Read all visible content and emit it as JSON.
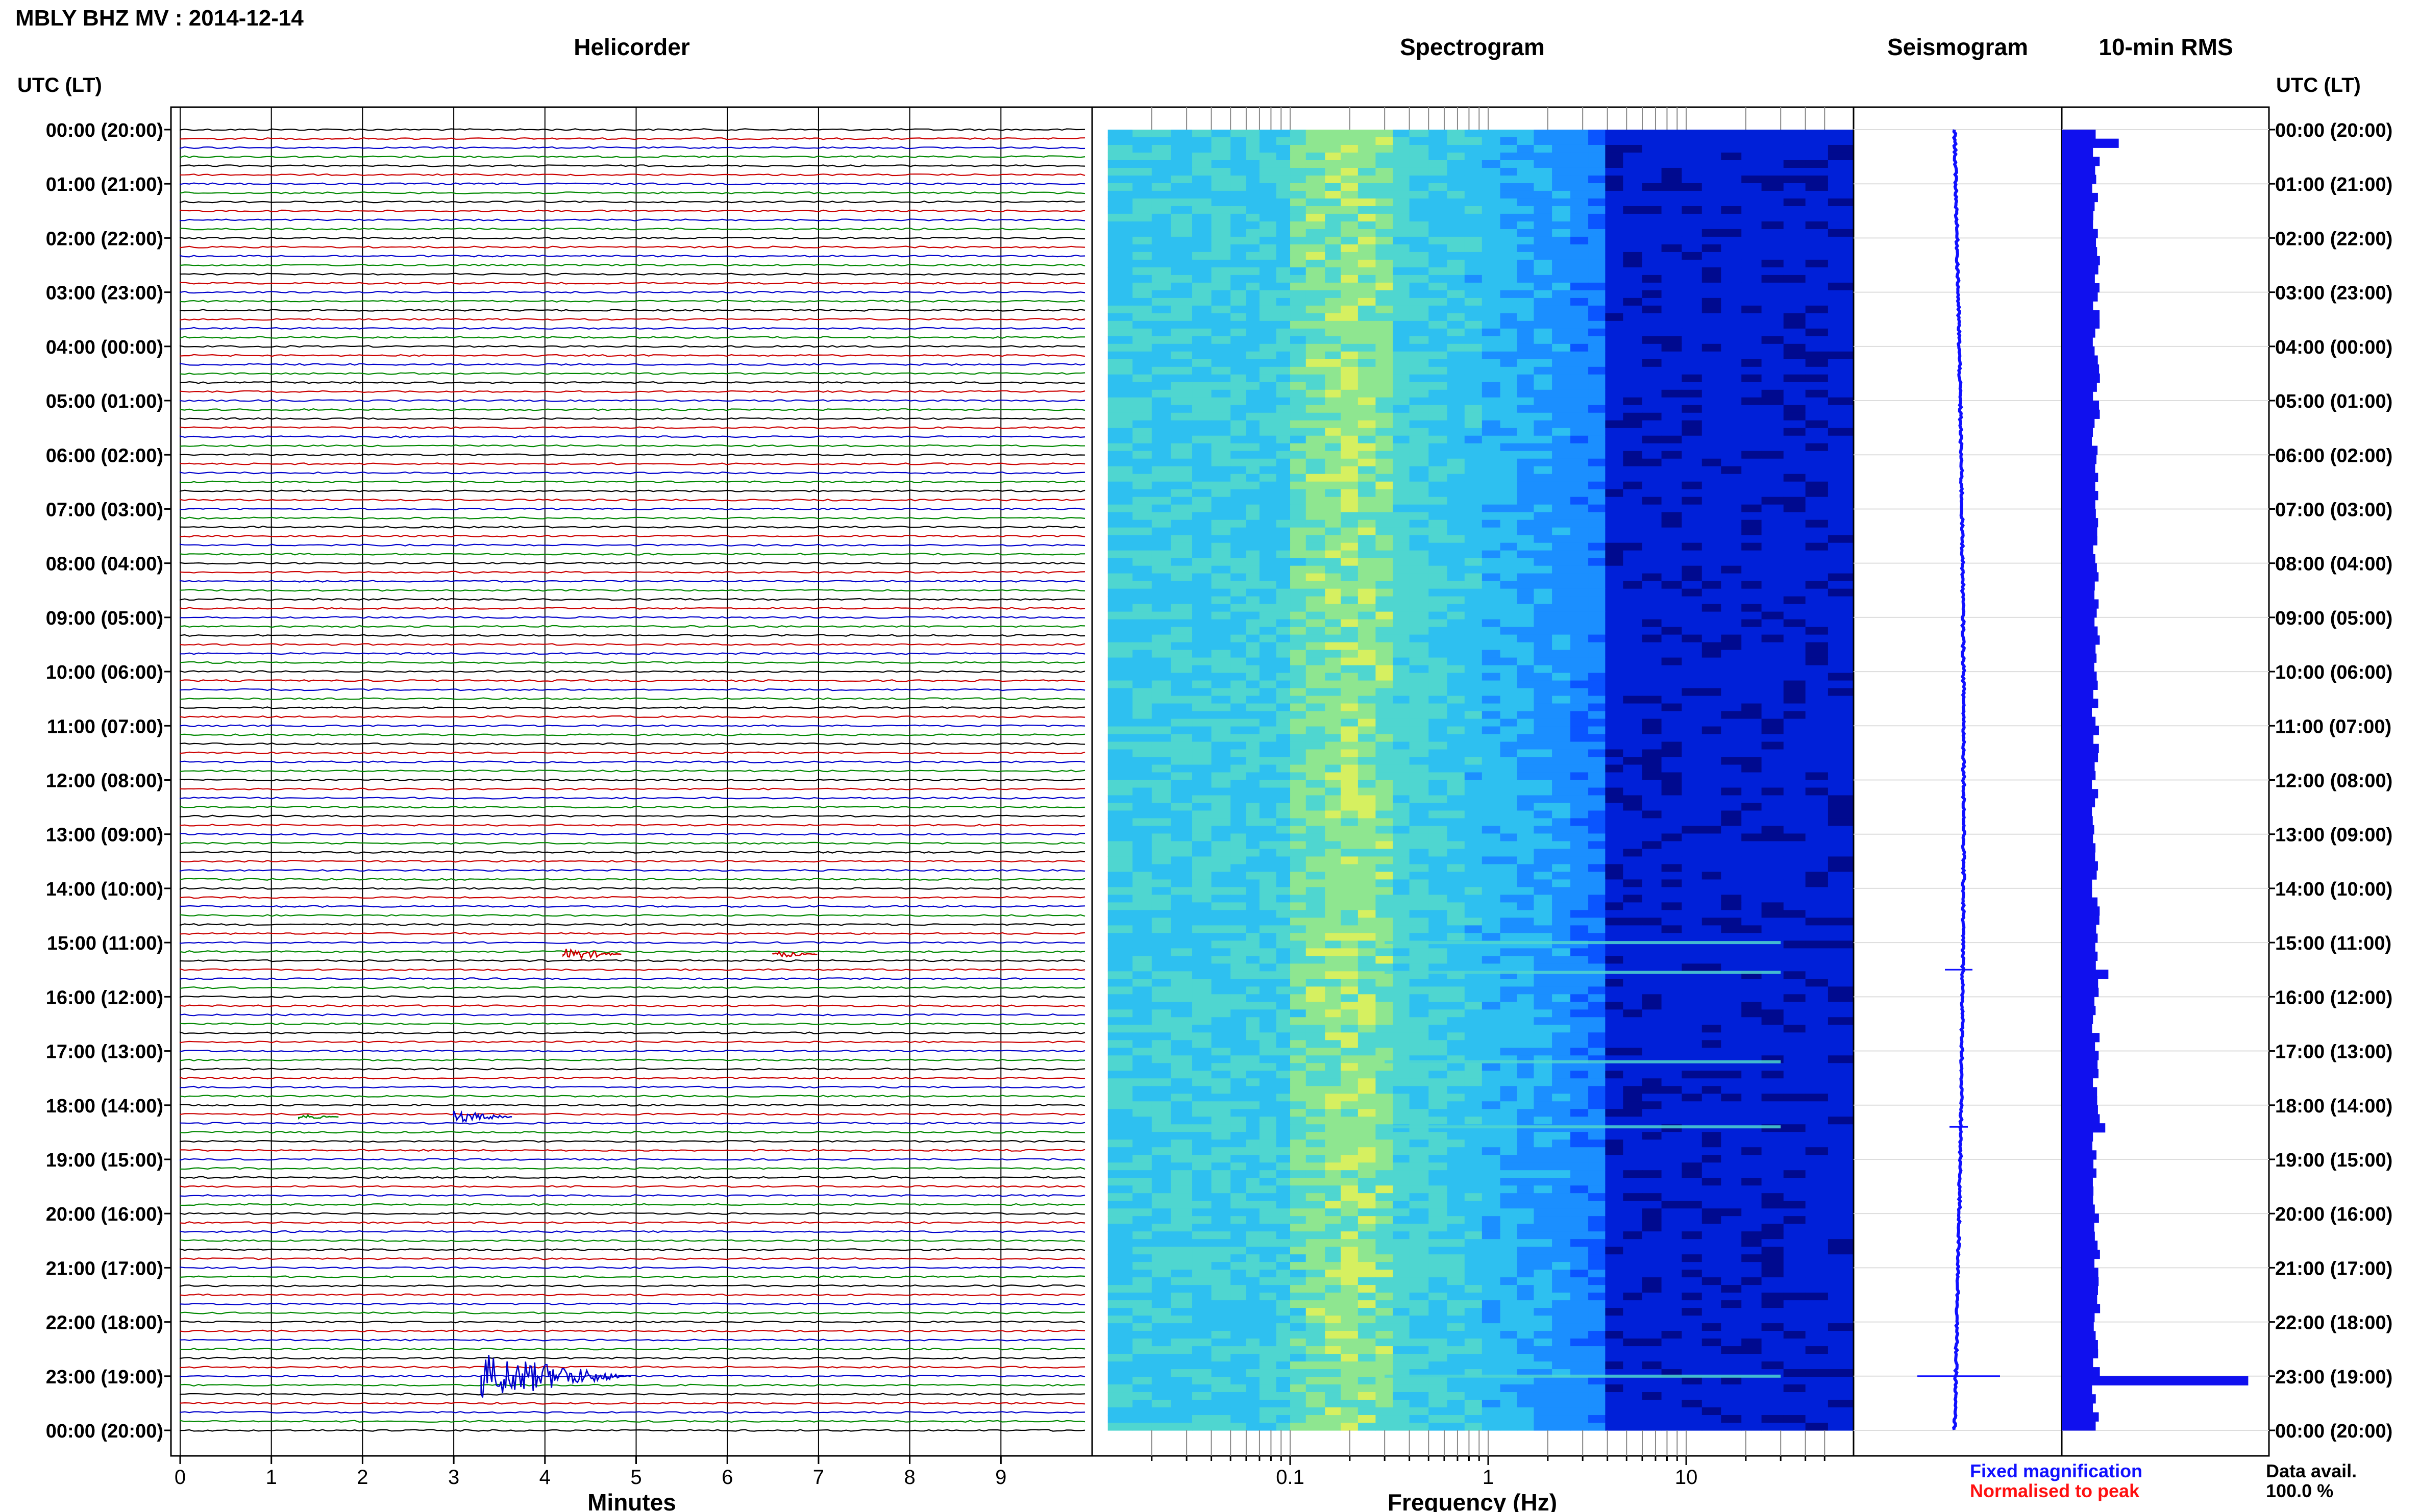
{
  "header": {
    "title": "MBLY BHZ MV : 2014-12-14",
    "left_axis_label": "UTC (LT)",
    "right_axis_label": "UTC (LT)"
  },
  "panels": {
    "helicorder": {
      "title": "Helicorder",
      "xlabel": "Minutes"
    },
    "spectrogram": {
      "title": "Spectrogram",
      "xlabel": "Frequency (Hz)"
    },
    "seismogram": {
      "title": "Seismogram"
    },
    "rms": {
      "title": "10-min RMS"
    }
  },
  "legend": {
    "fixed_label": "Fixed magnification",
    "fixed_color": "#1010ff",
    "normalised_label": "Normalised to peak",
    "normalised_color": "#ff1010"
  },
  "data_availability": {
    "label": "Data avail.",
    "value": "100.0 %"
  },
  "time_labels": [
    "00:00 (20:00)",
    "01:00 (21:00)",
    "02:00 (22:00)",
    "03:00 (23:00)",
    "04:00 (00:00)",
    "05:00 (01:00)",
    "06:00 (02:00)",
    "07:00 (03:00)",
    "08:00 (04:00)",
    "09:00 (05:00)",
    "10:00 (06:00)",
    "11:00 (07:00)",
    "12:00 (08:00)",
    "13:00 (09:00)",
    "14:00 (10:00)",
    "15:00 (11:00)",
    "16:00 (12:00)",
    "17:00 (13:00)",
    "18:00 (14:00)",
    "19:00 (15:00)",
    "20:00 (16:00)",
    "21:00 (17:00)",
    "22:00 (18:00)",
    "23:00 (19:00)",
    "00:00 (20:00)"
  ],
  "chart_data": [
    {
      "type": "line",
      "name": "helicorder",
      "title": "Helicorder",
      "xlabel": "Minutes",
      "x_ticks": [
        0,
        1,
        2,
        3,
        4,
        5,
        6,
        7,
        8,
        9
      ],
      "xlim": [
        0,
        10
      ],
      "trace_color_cycle": [
        "#000000",
        "#cc0000",
        "#0000cc",
        "#008800"
      ],
      "events": [
        {
          "hour": 15,
          "minute": 6.5,
          "color": "#cc0000",
          "amplitude": 0.4
        },
        {
          "hour": 15,
          "minute": 4.2,
          "color": "#cc0000",
          "amplitude": 0.7
        },
        {
          "hour": 18,
          "minute": 3.0,
          "color": "#0000cc",
          "amplitude": 0.7
        },
        {
          "hour": 18,
          "minute": 1.3,
          "color": "#008800",
          "amplitude": 0.3
        },
        {
          "hour": 23,
          "minute": 3.3,
          "color": "#0000cc",
          "amplitude": 2.6
        }
      ]
    },
    {
      "type": "heatmap",
      "name": "spectrogram",
      "title": "Spectrogram",
      "xlabel": "Frequency (Hz)",
      "x_scale": "log",
      "xlim": [
        0.01,
        70
      ],
      "x_ticks": [
        0.1,
        1,
        10
      ],
      "x_tick_labels": [
        "0.1",
        "1",
        "10"
      ],
      "colormap": [
        "#000a8f",
        "#0020d8",
        "#0a55ff",
        "#1b8fff",
        "#2ec0f0",
        "#4fd6d0",
        "#8ee690",
        "#d6f060"
      ],
      "peak_frequency_hz": 0.2,
      "bright_lines_utc_hour": [
        15.0,
        15.55,
        17.2,
        18.4,
        23.0
      ]
    },
    {
      "type": "line",
      "name": "seismogram",
      "title": "Seismogram",
      "spikes_utc_hour": [
        15.5,
        18.4,
        23.0
      ],
      "spike_amplitudes": [
        0.3,
        0.2,
        0.9
      ]
    },
    {
      "type": "bar",
      "name": "10-min RMS",
      "title": "10-min RMS",
      "bins_per_hour": 6,
      "baseline": 0.33,
      "peaks": [
        {
          "utc_hour": 0.1,
          "value": 0.55
        },
        {
          "utc_hour": 15.5,
          "value": 0.45
        },
        {
          "utc_hour": 18.4,
          "value": 0.42
        },
        {
          "utc_hour": 23.0,
          "value": 1.8
        }
      ],
      "xlim": [
        0,
        2.0
      ]
    }
  ]
}
